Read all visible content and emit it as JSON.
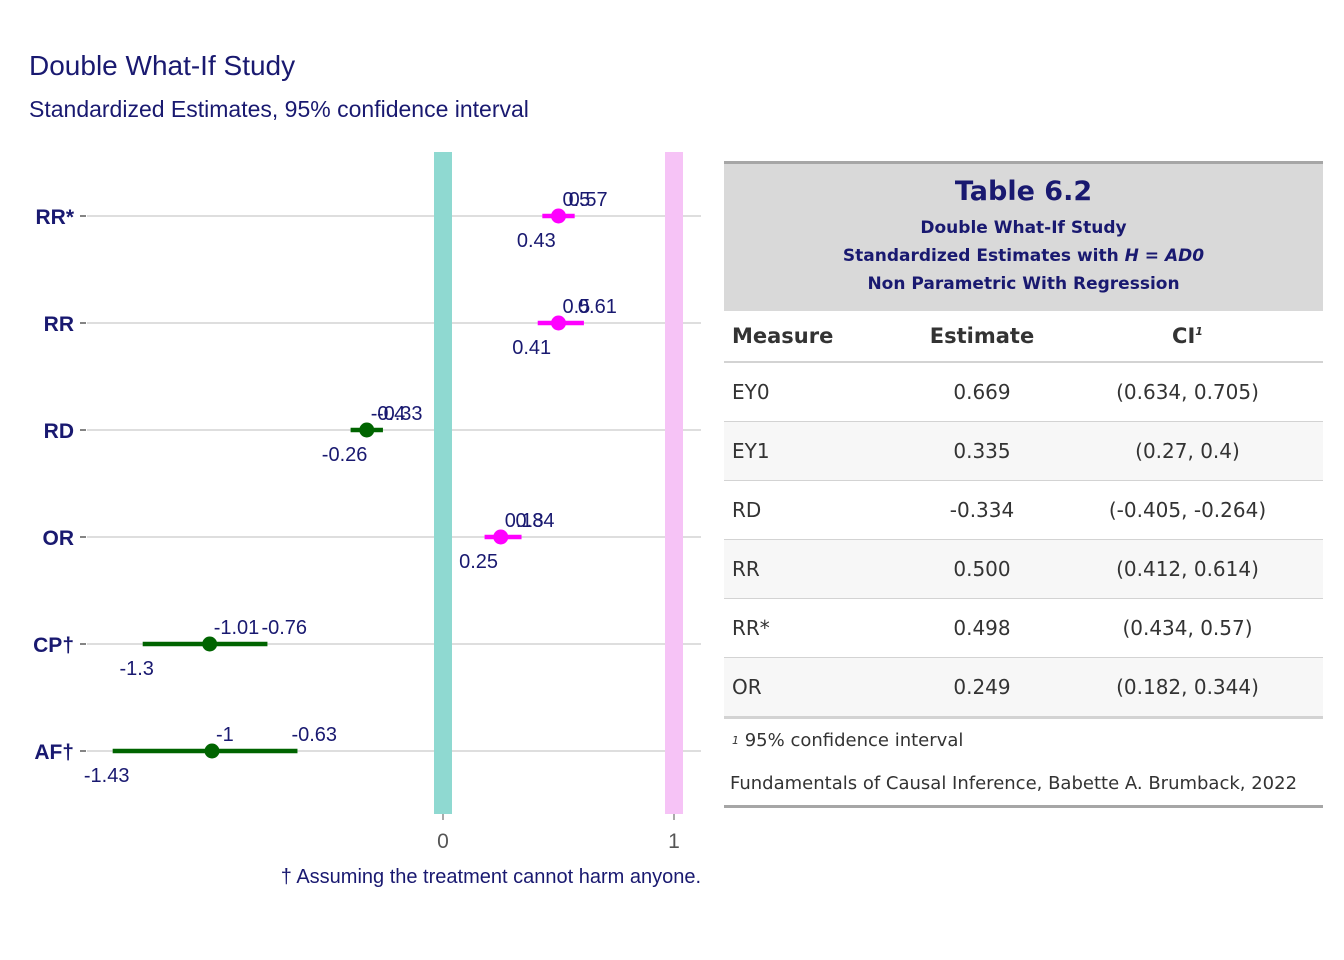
{
  "title": "Double What-If Study",
  "subtitle": "Standardized Estimates, 95% confidence interval",
  "footnote": "† Assuming the treatment cannot harm anyone.",
  "colors": {
    "text": "#191970",
    "magenta": "#ff00ff",
    "green": "#006400",
    "teal_band": "#8fd9d1",
    "pink_band": "#f6c3f6"
  },
  "chart_data": {
    "type": "forest",
    "x_ticks": [
      "0",
      "1"
    ],
    "reference_lines": [
      0,
      1
    ],
    "xlim": [
      -1.5,
      1.1
    ],
    "rows": [
      {
        "label": "RR*",
        "estimate": 0.5,
        "lower": 0.43,
        "upper": 0.57,
        "labels": [
          "0.5",
          "0.57",
          "0.43"
        ],
        "color": "#ff00ff"
      },
      {
        "label": "RR",
        "estimate": 0.5,
        "lower": 0.41,
        "upper": 0.61,
        "labels": [
          "0.5",
          "0.61",
          "0.41"
        ],
        "color": "#ff00ff"
      },
      {
        "label": "RD",
        "estimate": -0.33,
        "lower": -0.4,
        "upper": -0.26,
        "labels": [
          "-0.4",
          "-0.33",
          "-0.26"
        ],
        "color": "#006400"
      },
      {
        "label": "OR",
        "estimate": 0.25,
        "lower": 0.18,
        "upper": 0.34,
        "labels": [
          "0.18",
          "0.34",
          "0.25"
        ],
        "color": "#ff00ff"
      },
      {
        "label": "CP†",
        "estimate": -1.01,
        "lower": -1.3,
        "upper": -0.76,
        "labels": [
          "-1.01",
          "-0.76",
          "-1.3"
        ],
        "color": "#006400"
      },
      {
        "label": "AF†",
        "estimate": -1,
        "lower": -1.43,
        "upper": -0.63,
        "labels": [
          "-1",
          "-0.63",
          "-1.43"
        ],
        "color": "#006400"
      }
    ]
  },
  "table": {
    "title": "Table 6.2",
    "subtitle_1": "Double What-If Study",
    "subtitle_2a": "Standardized Estimates with ",
    "subtitle_2b": "H = AD0",
    "subtitle_3": "Non Parametric With Regression",
    "columns": [
      "Measure",
      "Estimate",
      "CI"
    ],
    "ci_mark": "1",
    "rows": [
      [
        "EY0",
        "0.669",
        "(0.634, 0.705)"
      ],
      [
        "EY1",
        "0.335",
        "(0.27, 0.4)"
      ],
      [
        "RD",
        "-0.334",
        "(-0.405, -0.264)"
      ],
      [
        "RR",
        "0.500",
        "(0.412, 0.614)"
      ],
      [
        "RR*",
        "0.498",
        "(0.434, 0.57)"
      ],
      [
        "OR",
        "0.249",
        "(0.182, 0.344)"
      ]
    ],
    "footnote_mark": "1",
    "footnote": "95% confidence interval",
    "source": "Fundamentals of Causal Inference, Babette A. Brumback, 2022"
  }
}
